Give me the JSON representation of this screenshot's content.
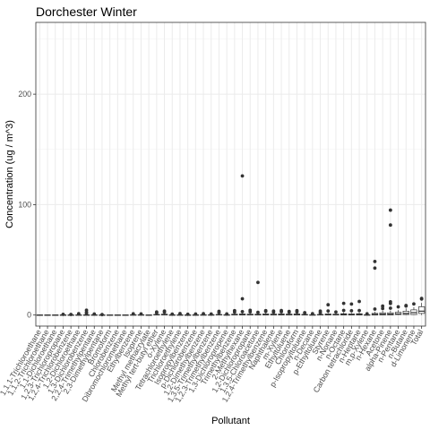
{
  "chart_data": {
    "type": "box",
    "title": "Dorchester Winter",
    "xlabel": "Pollutant",
    "ylabel": "Concentration (ug / m^3)",
    "ylim": [
      -10,
      265
    ],
    "yticks": [
      0,
      100,
      200
    ],
    "grid": true,
    "theme": "bw",
    "categories": [
      "1,1,1-Trichloroethane",
      "1,1,2-Trichloroethane",
      "1,1-Dichloroethane",
      "1,2,3-Trichloropropane",
      "1,2,4-Trichlorobenzene",
      "1,2-Dichloroethane",
      "1,3-Dichlorobenzene",
      "2,2,4-Trimethylpentane",
      "2,3-Dimethylpentane",
      "Bromoform",
      "Chlorobenzene",
      "Dibromochloromethane",
      "Ethylbenzene",
      "Isoprene",
      "Methyl methacrylate",
      "Methyl tert-butyl ether",
      "o-Xylene",
      "Tetrachloroethylene",
      "Trichloroethylene",
      "Isopropylbenzene",
      "p-Dichlorobenzene",
      "1,2-Dimethylbenzene",
      "1,3,5-Trimethylbenzene",
      "1,2,3-Trimethylbenzene",
      "1,3-Dichloropropene",
      "Trimethylbenzene",
      "2-Methylhexane",
      "1,2-Dichloropropane",
      "1,3,5-Chloroacetone",
      "1,2,4-Trimethylbenzene",
      "Naphthalene",
      "m-Xylene",
      "Ethyltoluene",
      "Chloroform",
      "p-Isopropyltoluene",
      "n-Decane",
      "p-Ethyltoluene",
      "Styrene",
      "n-Nonane",
      "n-Octane",
      "Carbon tetrachloride",
      "n-Heptane",
      "m,p-Xylene",
      "n-Hexane",
      "Acetone",
      "alpha-Pinene",
      "n-Pentane",
      "n-Butane",
      "d-Limonene",
      "Total"
    ],
    "xtick_labels": [
      "1,1,1-Trichloroethane",
      "1,1,2-Trichloroethane",
      "1,1-Dichloroethane",
      "1,2,3-Trichloropropane",
      "1,2,4-Trichlorobenzene",
      "1,2-Dichloroethane",
      "1,3-Dichlorobenzene",
      "2,2,4-Trimethylpentane",
      "2,3-Dimethylpentane",
      "Bromoform",
      "Chlorobenzene",
      "Dibromochloromethane",
      "Ethylbenzene",
      "Isoprene",
      "Methyl methacrylate",
      "Methyl tert-butyl ether",
      "o-Xylene",
      "Tetrachloroethylene",
      "Trichloroethylene",
      "Isopropylbenzene",
      "p-Dichlorobenzene",
      "1,2-Dimethylbenzene",
      "1,3,5-Trimethylbenzene",
      "1,2,3-Trimethylbenzene",
      "1,3-Dichloropropene",
      "Trimethylbenzene",
      "2-Methylhexane",
      "1,2-Dichloropropane",
      "1,3,5-Chloroacetone",
      "1,2,4-Trimethylbenzene",
      "Naphthalene",
      "m-Xylene",
      "Ethyltoluene",
      "Chloroform",
      "p-Isopropyltoluene",
      "n-Decane",
      "p-Ethyltoluene",
      "Styrene",
      "n-Nonane",
      "n-Octane",
      "Carbon tetrachloride",
      "n-Heptane",
      "m,p-Xylene",
      "n-Hexane",
      "Acetone",
      "alpha-Pinene",
      "n-Pentane",
      "n-Butane",
      "d-Limonene",
      "Total"
    ],
    "boxes": [
      {
        "q1": 0,
        "median": 0,
        "q3": 0.1,
        "wlo": 0,
        "whi": 0.2,
        "outliers": []
      },
      {
        "q1": 0,
        "median": 0,
        "q3": 0.1,
        "wlo": 0,
        "whi": 0.2,
        "outliers": []
      },
      {
        "q1": 0,
        "median": 0,
        "q3": 0.1,
        "wlo": 0,
        "whi": 0.2,
        "outliers": []
      },
      {
        "q1": 0,
        "median": 0,
        "q3": 0.1,
        "wlo": 0,
        "whi": 0.2,
        "outliers": [
          0.6
        ]
      },
      {
        "q1": 0,
        "median": 0,
        "q3": 0.1,
        "wlo": 0,
        "whi": 0.2,
        "outliers": [
          0.5
        ]
      },
      {
        "q1": 0,
        "median": 0,
        "q3": 0.2,
        "wlo": 0,
        "whi": 0.4,
        "outliers": [
          1.2
        ]
      },
      {
        "q1": 0,
        "median": 0,
        "q3": 0.2,
        "wlo": 0,
        "whi": 0.4,
        "outliers": [
          1.5,
          2.6,
          4.4
        ]
      },
      {
        "q1": 0,
        "median": 0.1,
        "q3": 0.2,
        "wlo": 0,
        "whi": 0.4,
        "outliers": [
          0.9
        ]
      },
      {
        "q1": 0,
        "median": 0,
        "q3": 0.1,
        "wlo": 0,
        "whi": 0.2,
        "outliers": [
          0.4
        ]
      },
      {
        "q1": 0,
        "median": 0,
        "q3": 0.1,
        "wlo": 0,
        "whi": 0.2,
        "outliers": []
      },
      {
        "q1": 0,
        "median": 0,
        "q3": 0.1,
        "wlo": 0,
        "whi": 0.2,
        "outliers": []
      },
      {
        "q1": 0,
        "median": 0,
        "q3": 0.1,
        "wlo": 0,
        "whi": 0.2,
        "outliers": []
      },
      {
        "q1": 0,
        "median": 0.1,
        "q3": 0.3,
        "wlo": 0,
        "whi": 0.6,
        "outliers": [
          1.1
        ]
      },
      {
        "q1": 0,
        "median": 0.1,
        "q3": 0.3,
        "wlo": 0,
        "whi": 0.7,
        "outliers": [
          1.0
        ]
      },
      {
        "q1": 0,
        "median": 0,
        "q3": 0.1,
        "wlo": 0,
        "whi": 0.2,
        "outliers": []
      },
      {
        "q1": 0,
        "median": 0.2,
        "q3": 0.5,
        "wlo": 0,
        "whi": 1.0,
        "outliers": [
          2.1,
          2.8
        ]
      },
      {
        "q1": 0,
        "median": 0.3,
        "q3": 0.8,
        "wlo": 0,
        "whi": 1.5,
        "outliers": [
          2.6,
          3.6
        ]
      },
      {
        "q1": 0,
        "median": 0.1,
        "q3": 0.2,
        "wlo": 0,
        "whi": 0.4,
        "outliers": [
          0.8
        ]
      },
      {
        "q1": 0,
        "median": 0.1,
        "q3": 0.2,
        "wlo": 0,
        "whi": 0.5,
        "outliers": [
          1.3
        ]
      },
      {
        "q1": 0,
        "median": 0,
        "q3": 0.1,
        "wlo": 0,
        "whi": 0.2,
        "outliers": [
          0.7
        ]
      },
      {
        "q1": 0,
        "median": 0.1,
        "q3": 0.2,
        "wlo": 0,
        "whi": 0.4,
        "outliers": [
          0.9
        ]
      },
      {
        "q1": 0,
        "median": 0.1,
        "q3": 0.3,
        "wlo": 0,
        "whi": 0.6,
        "outliers": [
          1.2
        ]
      },
      {
        "q1": 0,
        "median": 0.1,
        "q3": 0.3,
        "wlo": 0,
        "whi": 0.6,
        "outliers": [
          0.9
        ]
      },
      {
        "q1": 0,
        "median": 0.2,
        "q3": 0.5,
        "wlo": 0,
        "whi": 1.0,
        "outliers": [
          2.2,
          3.4
        ]
      },
      {
        "q1": 0,
        "median": 0.1,
        "q3": 0.3,
        "wlo": 0,
        "whi": 0.6,
        "outliers": [
          1.0
        ]
      },
      {
        "q1": 0,
        "median": 0.3,
        "q3": 0.8,
        "wlo": 0,
        "whi": 1.6,
        "outliers": [
          2.7,
          4.0
        ]
      },
      {
        "q1": 0,
        "median": 0.4,
        "q3": 1.0,
        "wlo": 0,
        "whi": 2.0,
        "outliers": [
          3.1,
          14.7,
          126.0
        ]
      },
      {
        "q1": 0,
        "median": 0.3,
        "q3": 0.8,
        "wlo": 0,
        "whi": 1.6,
        "outliers": [
          2.9,
          4.3
        ]
      },
      {
        "q1": 0,
        "median": 0.3,
        "q3": 0.8,
        "wlo": 0,
        "whi": 1.6,
        "outliers": [
          2.5,
          29.5
        ]
      },
      {
        "q1": 0,
        "median": 0.4,
        "q3": 1.0,
        "wlo": 0,
        "whi": 2.0,
        "outliers": [
          3.3,
          4.0
        ]
      },
      {
        "q1": 0,
        "median": 0.3,
        "q3": 0.9,
        "wlo": 0,
        "whi": 1.8,
        "outliers": [
          2.6,
          3.6
        ]
      },
      {
        "q1": 0,
        "median": 0.4,
        "q3": 1.0,
        "wlo": 0,
        "whi": 2.0,
        "outliers": [
          3.0,
          4.1
        ]
      },
      {
        "q1": 0,
        "median": 0.3,
        "q3": 0.9,
        "wlo": 0,
        "whi": 1.8,
        "outliers": [
          2.6,
          3.3
        ]
      },
      {
        "q1": 0,
        "median": 0.4,
        "q3": 1.0,
        "wlo": 0,
        "whi": 2.0,
        "outliers": [
          2.8,
          4.0
        ]
      },
      {
        "q1": 0,
        "median": 0.2,
        "q3": 0.6,
        "wlo": 0,
        "whi": 1.2,
        "outliers": [
          2.1
        ]
      },
      {
        "q1": 0,
        "median": 0.1,
        "q3": 0.3,
        "wlo": 0,
        "whi": 0.6,
        "outliers": [
          1.2
        ]
      },
      {
        "q1": 0,
        "median": 0.2,
        "q3": 0.5,
        "wlo": 0,
        "whi": 1.0,
        "outliers": [
          2.0,
          3.6
        ]
      },
      {
        "q1": 0,
        "median": 0.4,
        "q3": 1.0,
        "wlo": 0,
        "whi": 2.0,
        "outliers": [
          3.7,
          9.3
        ]
      },
      {
        "q1": 0,
        "median": 0.3,
        "q3": 0.8,
        "wlo": 0,
        "whi": 1.6,
        "outliers": [
          2.8
        ]
      },
      {
        "q1": 0,
        "median": 0.5,
        "q3": 1.2,
        "wlo": 0,
        "whi": 2.4,
        "outliers": [
          4.2,
          10.6
        ]
      },
      {
        "q1": 0,
        "median": 0.4,
        "q3": 1.0,
        "wlo": 0,
        "whi": 2.0,
        "outliers": [
          3.9,
          10.0
        ]
      },
      {
        "q1": 0,
        "median": 0.5,
        "q3": 1.2,
        "wlo": 0,
        "whi": 2.4,
        "outliers": [
          4.1,
          12.3
        ]
      },
      {
        "q1": 0,
        "median": 0.1,
        "q3": 0.3,
        "wlo": 0,
        "whi": 0.6,
        "outliers": [
          1.1
        ]
      },
      {
        "q1": 0,
        "median": 0.6,
        "q3": 1.5,
        "wlo": 0,
        "whi": 3.0,
        "outliers": [
          5.4,
          42.5,
          48.5
        ]
      },
      {
        "q1": 0,
        "median": 0.8,
        "q3": 2.0,
        "wlo": 0,
        "whi": 4.0,
        "outliers": [
          5.9,
          8.1
        ]
      },
      {
        "q1": 0,
        "median": 0.8,
        "q3": 2.0,
        "wlo": 0,
        "whi": 4.0,
        "outliers": [
          6.2,
          10.5,
          12.0,
          81.5,
          95.0
        ]
      },
      {
        "q1": 0.5,
        "median": 1.0,
        "q3": 2.5,
        "wlo": 0,
        "whi": 4.5,
        "outliers": [
          7.4
        ]
      },
      {
        "q1": 0.5,
        "median": 1.5,
        "q3": 3.5,
        "wlo": 0,
        "whi": 6.0,
        "outliers": [
          8.2,
          8.6
        ]
      },
      {
        "q1": 0.5,
        "median": 2.2,
        "q3": 4.7,
        "wlo": 0,
        "whi": 7.0,
        "outliers": [
          10.1
        ]
      },
      {
        "q1": 1.5,
        "median": 3.5,
        "q3": 7.5,
        "wlo": 0,
        "whi": 11.0,
        "outliers": [
          14.5,
          15.0
        ]
      }
    ]
  }
}
